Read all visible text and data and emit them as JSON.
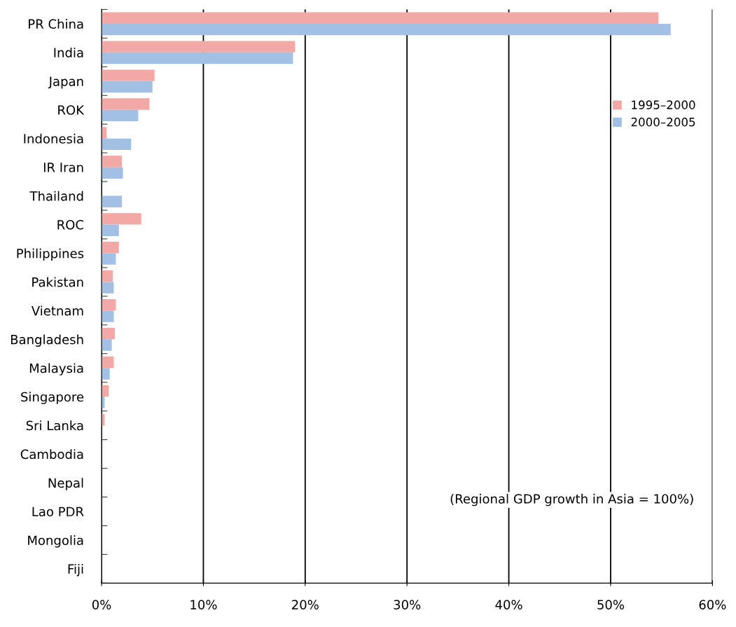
{
  "chart_data": {
    "type": "bar",
    "orientation": "horizontal",
    "categories": [
      "PR China",
      "India",
      "Japan",
      "ROK",
      "Indonesia",
      "IR Iran",
      "Thailand",
      "ROC",
      "Philippines",
      "Pakistan",
      "Vietnam",
      "Bangladesh",
      "Malaysia",
      "Singapore",
      "Sri Lanka",
      "Cambodia",
      "Nepal",
      "Lao PDR",
      "Mongolia",
      "Fiji"
    ],
    "series": [
      {
        "name": "1995–2000",
        "color": "#f2a9a6",
        "values": [
          54.7,
          19.0,
          5.2,
          4.7,
          0.5,
          2.0,
          null,
          3.9,
          1.7,
          1.1,
          1.4,
          1.3,
          1.2,
          0.7,
          0.3,
          null,
          null,
          0,
          0,
          0
        ]
      },
      {
        "name": "2000–2005",
        "color": "#a2c0e4",
        "values": [
          55.9,
          18.8,
          5.0,
          3.6,
          2.9,
          2.1,
          2.0,
          1.7,
          1.4,
          1.2,
          1.2,
          1.0,
          0.8,
          0.3,
          null,
          null,
          0,
          0,
          0,
          0
        ]
      }
    ],
    "xlim": [
      0,
      60
    ],
    "xticks": [
      {
        "value": 0,
        "label": "0%"
      },
      {
        "value": 10,
        "label": "10%"
      },
      {
        "value": 20,
        "label": "20%"
      },
      {
        "value": 30,
        "label": "30%"
      },
      {
        "value": 40,
        "label": "40%"
      },
      {
        "value": 50,
        "label": "50%"
      },
      {
        "value": 60,
        "label": "60%"
      }
    ],
    "grid": "x",
    "legend": "top right",
    "annotations": [
      "(Regional GDP growth in Asia = 100%)"
    ]
  }
}
